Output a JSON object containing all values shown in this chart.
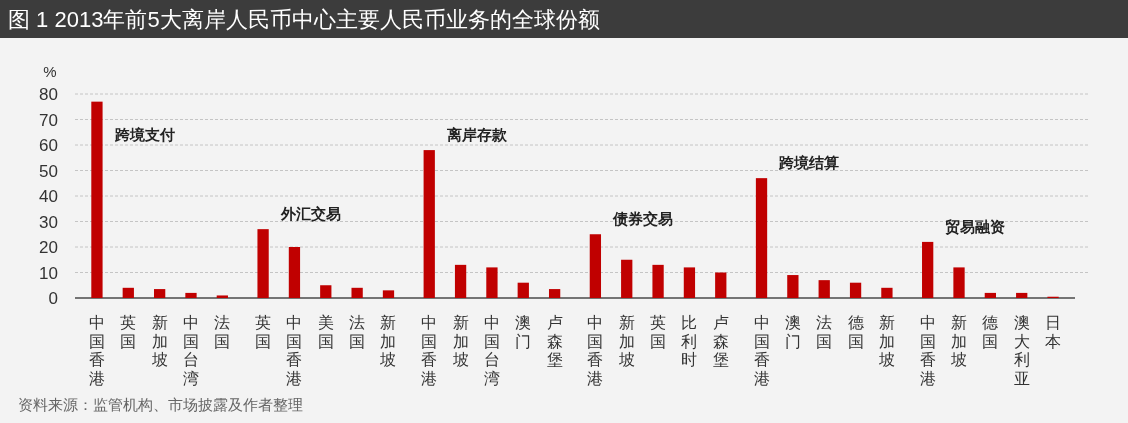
{
  "chart_data": {
    "type": "bar",
    "title": "图 1 2013年前5大离岸人民币中心主要人民币业务的全球份额",
    "ylabel": "%",
    "categories": [
      "中国香港",
      "英国",
      "新加坡",
      "中国台湾",
      "法国",
      "英国",
      "中国香港",
      "美国",
      "法国",
      "新加坡",
      "中国香港",
      "新加坡",
      "中国台湾",
      "澳门",
      "卢森堡",
      "中国香港",
      "新加坡",
      "英国",
      "比利时",
      "卢森堡",
      "中国香港",
      "澳门",
      "法国",
      "德国",
      "新加坡",
      "中国香港",
      "新加坡",
      "德国",
      "澳大利亚",
      "日本"
    ],
    "series": [
      {
        "name": "跨境支付",
        "color": "#c00000",
        "values": [
          77,
          4,
          3.5,
          2,
          1,
          null,
          null,
          null,
          null,
          null,
          null,
          null,
          null,
          null,
          null,
          null,
          null,
          null,
          null,
          null,
          null,
          null,
          null,
          null,
          null,
          null,
          null,
          null,
          null,
          null
        ]
      },
      {
        "name": "外汇交易",
        "color": "#c00000",
        "values": [
          null,
          null,
          null,
          null,
          null,
          27,
          20,
          5,
          4,
          3,
          null,
          null,
          null,
          null,
          null,
          null,
          null,
          null,
          null,
          null,
          null,
          null,
          null,
          null,
          null,
          null,
          null,
          null,
          null,
          null
        ]
      },
      {
        "name": "离岸存款",
        "color": "#c00000",
        "values": [
          null,
          null,
          null,
          null,
          null,
          null,
          null,
          null,
          null,
          null,
          58,
          13,
          12,
          6,
          3.5,
          null,
          null,
          null,
          null,
          null,
          null,
          null,
          null,
          null,
          null,
          null,
          null,
          null,
          null,
          null
        ]
      },
      {
        "name": "债券交易",
        "color": "#c00000",
        "values": [
          null,
          null,
          null,
          null,
          null,
          null,
          null,
          null,
          null,
          null,
          null,
          null,
          null,
          null,
          null,
          25,
          15,
          13,
          12,
          10,
          null,
          null,
          null,
          null,
          null,
          null,
          null,
          null,
          null,
          null
        ]
      },
      {
        "name": "跨境结算",
        "color": "#c00000",
        "values": [
          null,
          null,
          null,
          null,
          null,
          null,
          null,
          null,
          null,
          null,
          null,
          null,
          null,
          null,
          null,
          null,
          null,
          null,
          null,
          null,
          47,
          9,
          7,
          6,
          4,
          null,
          null,
          null,
          null,
          null
        ]
      },
      {
        "name": "贸易融资",
        "color": "#c00000",
        "values": [
          null,
          null,
          null,
          null,
          null,
          null,
          null,
          null,
          null,
          null,
          null,
          null,
          null,
          null,
          null,
          null,
          null,
          null,
          null,
          null,
          null,
          null,
          null,
          null,
          null,
          22,
          12,
          2,
          2,
          0.5
        ]
      }
    ],
    "ylim": [
      0,
      80
    ],
    "yticks": [
      0,
      10,
      20,
      30,
      40,
      50,
      60,
      70,
      80
    ],
    "grid": "y",
    "annotations": [
      "资料来源：监管机构、市场披露及作者整理"
    ]
  }
}
